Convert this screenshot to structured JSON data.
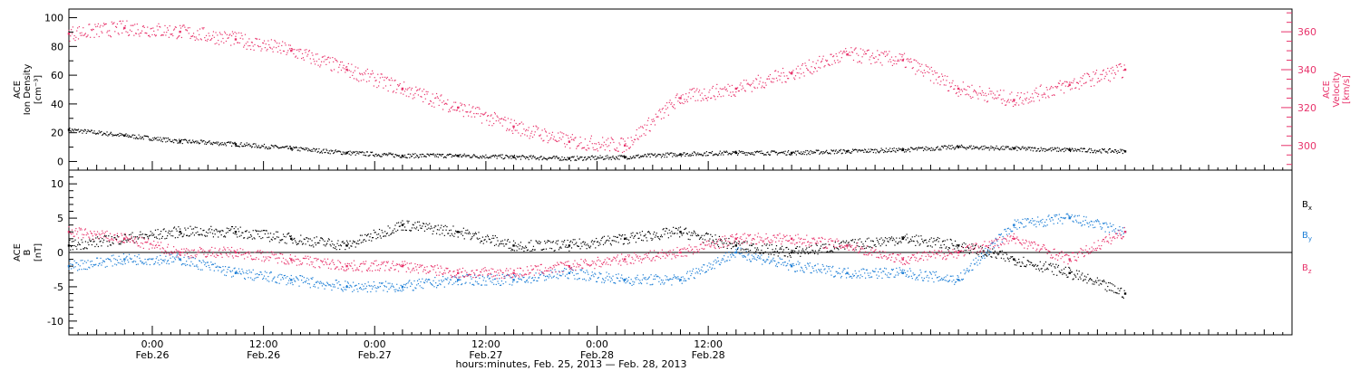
{
  "chart_data": [
    {
      "type": "scatter",
      "panel": "top",
      "ylabel_left": [
        "ACE",
        "Ion Density",
        "[cm⁻³]"
      ],
      "ylabel_right": [
        "ACE",
        "Velocity",
        "[km/s]"
      ],
      "ylim_left": [
        -6,
        106
      ],
      "ylim_right": [
        287,
        372
      ],
      "yticks_left": [
        0,
        20,
        40,
        60,
        80,
        100
      ],
      "yticks_right": [
        300,
        320,
        340,
        360
      ],
      "series": [
        {
          "axis": "left",
          "color": "#000000",
          "hours": [
            0,
            6,
            12,
            18,
            24,
            30,
            36,
            42,
            48,
            54,
            60,
            66,
            72,
            78,
            84,
            90,
            96,
            102,
            108,
            114
          ],
          "values": [
            22,
            18,
            14,
            12,
            9,
            6,
            4,
            4,
            3,
            2,
            3,
            5,
            6,
            6,
            7,
            8,
            10,
            9,
            8,
            7
          ]
        },
        {
          "axis": "right",
          "color": "#e8336b",
          "hours": [
            0,
            6,
            12,
            18,
            24,
            30,
            36,
            42,
            48,
            54,
            60,
            66,
            72,
            78,
            84,
            90,
            96,
            102,
            108,
            114
          ],
          "values": [
            359,
            362,
            360,
            356,
            350,
            340,
            330,
            320,
            310,
            302,
            300,
            325,
            330,
            338,
            348,
            345,
            330,
            324,
            332,
            340
          ]
        }
      ]
    },
    {
      "type": "scatter",
      "panel": "bottom",
      "ylabel_left": [
        "ACE",
        "B",
        "[nT]"
      ],
      "ylim": [
        -12,
        12
      ],
      "yticks": [
        -10,
        -5,
        0,
        5,
        10
      ],
      "series": [
        {
          "name": "B",
          "subscript": "x",
          "color": "#000000",
          "hours": [
            0,
            6,
            12,
            18,
            24,
            30,
            36,
            42,
            48,
            54,
            60,
            66,
            72,
            78,
            84,
            90,
            96,
            102,
            108,
            114
          ],
          "values": [
            1,
            2,
            3,
            3,
            2,
            1,
            4,
            3,
            1,
            1,
            2,
            3,
            1,
            0,
            1,
            2,
            1,
            -1,
            -3,
            -6
          ]
        },
        {
          "name": "B",
          "subscript": "y",
          "color": "#1e7fd6",
          "hours": [
            0,
            6,
            12,
            18,
            24,
            30,
            36,
            42,
            48,
            54,
            60,
            66,
            72,
            78,
            84,
            90,
            96,
            102,
            108,
            114
          ],
          "values": [
            -2,
            -1,
            -1,
            -3,
            -4,
            -5,
            -5,
            -4,
            -4,
            -3,
            -4,
            -4,
            0,
            -2,
            -3,
            -3,
            -4,
            4,
            5,
            3
          ]
        },
        {
          "name": "B",
          "subscript": "z",
          "color": "#e8336b",
          "hours": [
            0,
            6,
            12,
            18,
            24,
            30,
            36,
            42,
            48,
            54,
            60,
            66,
            72,
            78,
            84,
            90,
            96,
            102,
            108,
            114
          ],
          "values": [
            3,
            2,
            0,
            0,
            -1,
            -2,
            -2,
            -3,
            -3,
            -2,
            -1,
            0,
            2,
            2,
            1,
            -1,
            0,
            2,
            -1,
            3
          ]
        }
      ]
    }
  ],
  "xaxis": {
    "xlim_hours": [
      0,
      132
    ],
    "major_ticks": [
      {
        "hours": 9,
        "time": "0:00",
        "date": "Feb.26"
      },
      {
        "hours": 21,
        "time": "12:00",
        "date": "Feb.26"
      },
      {
        "hours": 33,
        "time": "0:00",
        "date": "Feb.27"
      },
      {
        "hours": 45,
        "time": "12:00",
        "date": "Feb.27"
      },
      {
        "hours": 57,
        "time": "0:00",
        "date": "Feb.28"
      },
      {
        "hours": 69,
        "time": "12:00",
        "date": "Feb.28"
      }
    ],
    "xlabel": "hours:minutes, Feb. 25, 2013 — Feb. 28, 2013"
  }
}
